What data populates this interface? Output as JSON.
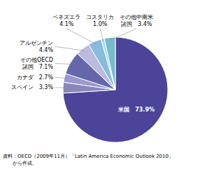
{
  "chart_data": {
    "type": "pie",
    "values": [
      73.9,
      3.3,
      2.7,
      7.1,
      4.4,
      4.1,
      1.0,
      3.4
    ],
    "value_labels": [
      "米国　73.9%",
      "スペイン　3.3%",
      "カナダ　2.7%",
      "その他OECD\n諸国　7.1%",
      "アルゼンチン\n4.4%",
      "ベネズエラ\n4.1%",
      "コスタリカ\n1.0%",
      "その他中南米\n諸国　3.4%"
    ],
    "colors": [
      "#4b4499",
      "#8888bb",
      "#9999cc",
      "#6666aa",
      "#bbbbdd",
      "#88bbdd",
      "#aaddee",
      "#77bbcc"
    ],
    "data_labels": true,
    "source": "資料：OECD（2009年11月）「Latin America Economic Outlook 2010」\n　　から作成。"
  }
}
